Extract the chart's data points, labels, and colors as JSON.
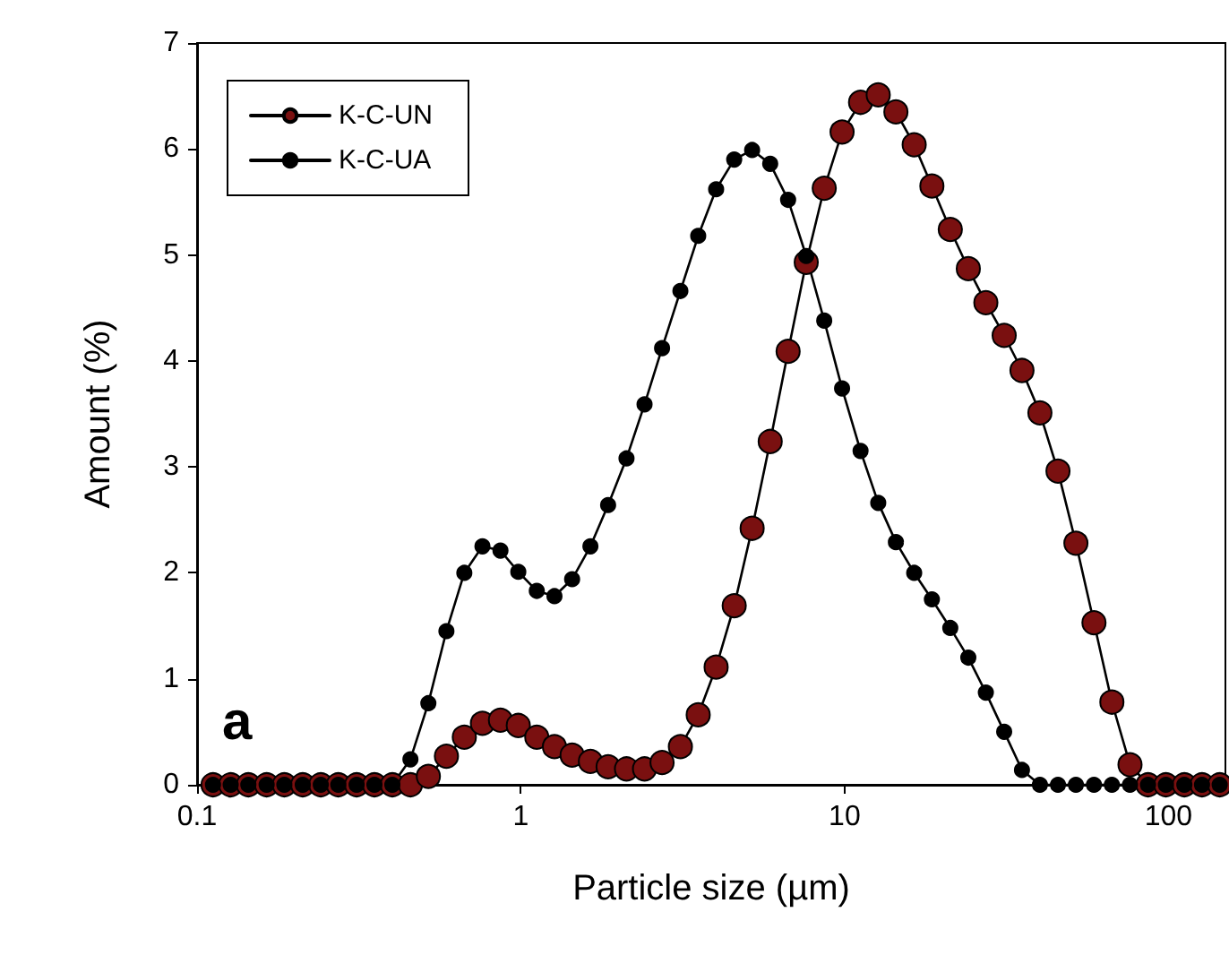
{
  "chart_data": {
    "type": "line",
    "xlabel": "Particle size (µm)",
    "ylabel": "Amount (%)",
    "annotations": [
      "a"
    ],
    "x": [
      0.112,
      0.127,
      0.144,
      0.164,
      0.186,
      0.212,
      0.241,
      0.273,
      0.311,
      0.353,
      0.401,
      0.456,
      0.518,
      0.589,
      0.669,
      0.761,
      0.865,
      0.982,
      1.12,
      1.27,
      1.44,
      1.64,
      1.86,
      2.12,
      2.41,
      2.73,
      3.11,
      3.53,
      4.01,
      4.56,
      5.18,
      5.89,
      6.69,
      7.61,
      8.65,
      9.82,
      11.2,
      12.7,
      14.4,
      16.4,
      18.6,
      21.2,
      24.1,
      27.3,
      31.1,
      35.3,
      40.1,
      45.6,
      51.8,
      58.9,
      66.9,
      76.1,
      86.5,
      98.2,
      112,
      127,
      144
    ],
    "series": [
      {
        "name": "K-C-UN",
        "color": "#7a1010",
        "values": [
          0,
          0,
          0,
          0,
          0,
          0,
          0,
          0,
          0,
          0,
          0,
          0,
          0.08,
          0.27,
          0.45,
          0.58,
          0.61,
          0.56,
          0.45,
          0.36,
          0.28,
          0.22,
          0.17,
          0.15,
          0.15,
          0.21,
          0.36,
          0.66,
          1.11,
          1.69,
          2.42,
          3.24,
          4.09,
          4.93,
          5.63,
          6.16,
          6.44,
          6.51,
          6.35,
          6.04,
          5.65,
          5.24,
          4.87,
          4.55,
          4.24,
          3.91,
          3.51,
          2.96,
          2.28,
          1.53,
          0.78,
          0.19,
          0,
          0,
          0,
          0,
          0
        ]
      },
      {
        "name": "K-C-UA",
        "color": "#000000",
        "values": [
          0,
          0,
          0,
          0,
          0,
          0,
          0,
          0,
          0,
          0,
          0,
          0.24,
          0.77,
          1.45,
          2.0,
          2.25,
          2.21,
          2.01,
          1.83,
          1.78,
          1.94,
          2.25,
          2.64,
          3.08,
          3.59,
          4.12,
          4.66,
          5.18,
          5.62,
          5.9,
          5.99,
          5.86,
          5.52,
          4.99,
          4.38,
          3.74,
          3.15,
          2.66,
          2.29,
          2.0,
          1.75,
          1.48,
          1.2,
          0.87,
          0.5,
          0.14,
          0,
          0,
          0,
          0,
          0,
          0,
          0,
          0,
          0,
          0,
          0
        ]
      }
    ],
    "log": "x",
    "xlim": [
      0.1,
      150
    ],
    "xticks": [
      {
        "value": 0.1,
        "label": "0.1"
      },
      1,
      10,
      100
    ],
    "ylim": [
      0,
      7
    ],
    "yticks": [
      0,
      1,
      2,
      3,
      4,
      5,
      6,
      7
    ],
    "grid": false,
    "legend": "top left",
    "marker": "circle",
    "line_style": "solid"
  }
}
